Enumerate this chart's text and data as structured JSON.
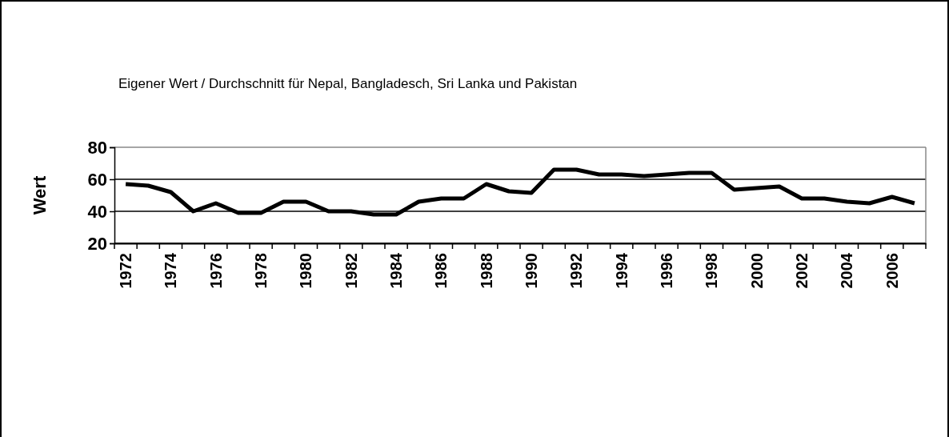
{
  "chart_data": {
    "type": "line",
    "title": "Eigener Wert / Durchschnitt für Nepal, Bangladesch, Sri Lanka und Pakistan",
    "ylabel": "Wert",
    "categories": [
      "1972",
      null,
      "1974",
      null,
      "1976",
      null,
      "1978",
      null,
      "1980",
      null,
      "1982",
      null,
      "1984",
      null,
      "1986",
      null,
      "1988",
      null,
      "1990",
      null,
      "1992",
      null,
      "1994",
      null,
      "1996",
      null,
      "1998",
      null,
      "2000",
      null,
      "2002",
      null,
      "2004",
      null,
      "2006",
      null
    ],
    "series": [
      {
        "color": "#000000",
        "values": [
          57,
          56,
          52,
          40,
          45,
          39,
          39,
          46,
          46,
          40,
          40,
          38,
          38,
          46,
          48,
          48,
          57,
          52.5,
          51.5,
          66,
          66,
          63,
          63,
          62,
          63,
          64,
          64,
          53.5,
          54.5,
          55.5,
          48,
          48,
          46,
          45,
          49,
          45
        ]
      }
    ],
    "ylim": [
      20,
      80
    ],
    "yticks": [
      20,
      40,
      60,
      80
    ],
    "grid": "y",
    "marker": "none",
    "line_style": "solid"
  }
}
